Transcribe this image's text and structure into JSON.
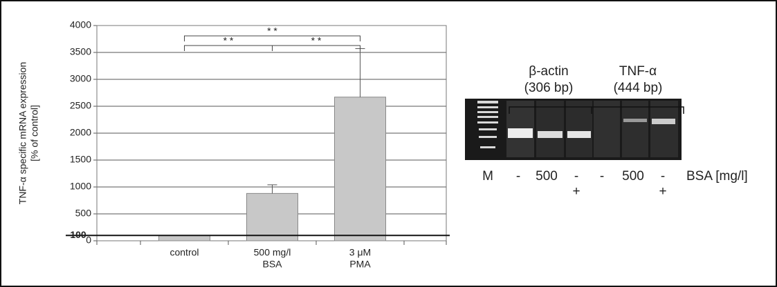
{
  "chart_data": {
    "type": "bar",
    "y_label": [
      "TNF-α specific mRNA expression",
      "[% of control]"
    ],
    "categories": [
      [
        "control"
      ],
      [
        "500 mg/l",
        "BSA"
      ],
      [
        "3 μM",
        "PMA"
      ]
    ],
    "values": [
      100,
      880,
      2670
    ],
    "errors": [
      null,
      160,
      900
    ],
    "color": "#c8c8c8",
    "ylim": [
      0,
      4000
    ],
    "yticks": [
      0,
      500,
      1000,
      1500,
      2000,
      2500,
      3000,
      3500,
      4000
    ],
    "grid": true,
    "reference_line": {
      "value": 100,
      "label": "100"
    },
    "significance": [
      {
        "from": 0,
        "to": 2,
        "label": "* *"
      },
      {
        "from": 0,
        "to": 1,
        "label": "* *"
      },
      {
        "from": 1,
        "to": 2,
        "label": "* *"
      }
    ]
  },
  "gel": {
    "groups": [
      {
        "name": "β-actin",
        "size": "(306 bp)"
      },
      {
        "name": "TNF-α",
        "size": "(444 bp)"
      }
    ],
    "lanes": [
      [
        "M"
      ],
      [
        "-"
      ],
      [
        "500"
      ],
      [
        "-",
        "+"
      ],
      [
        "-"
      ],
      [
        "500"
      ],
      [
        "-",
        "+"
      ]
    ],
    "row_label": "BSA [mg/l]"
  }
}
